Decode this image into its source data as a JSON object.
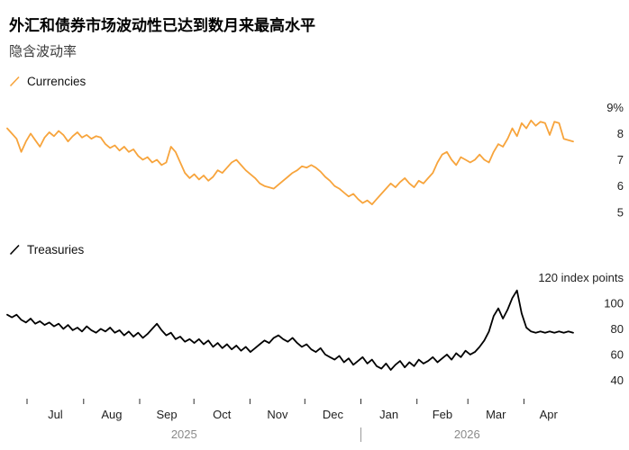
{
  "title": "外汇和债券市场波动性已达到数月来最高水平",
  "subtitle": "隐含波动率",
  "chart_data": {
    "panels": [
      {
        "type": "line",
        "name": "Currencies",
        "color": "#f7a43c",
        "unit": "%",
        "ylim": [
          4.65,
          9.25
        ],
        "yticks": [
          {
            "value": 5,
            "label": "5"
          },
          {
            "value": 6,
            "label": "6"
          },
          {
            "value": 7,
            "label": "7"
          },
          {
            "value": 8,
            "label": "8"
          },
          {
            "value": 9,
            "label": "9%"
          }
        ],
        "values": [
          8.2,
          8.0,
          7.8,
          7.3,
          7.7,
          8.0,
          7.75,
          7.5,
          7.85,
          8.05,
          7.9,
          8.1,
          7.95,
          7.7,
          7.9,
          8.05,
          7.85,
          7.95,
          7.8,
          7.9,
          7.85,
          7.6,
          7.45,
          7.55,
          7.35,
          7.5,
          7.3,
          7.4,
          7.15,
          7.0,
          7.1,
          6.9,
          7.0,
          6.8,
          6.9,
          7.5,
          7.3,
          6.9,
          6.5,
          6.3,
          6.45,
          6.25,
          6.4,
          6.2,
          6.35,
          6.6,
          6.5,
          6.7,
          6.9,
          7.0,
          6.8,
          6.6,
          6.45,
          6.3,
          6.1,
          6.0,
          5.95,
          5.9,
          6.05,
          6.2,
          6.35,
          6.5,
          6.6,
          6.75,
          6.7,
          6.8,
          6.7,
          6.55,
          6.35,
          6.2,
          6.0,
          5.9,
          5.75,
          5.6,
          5.7,
          5.5,
          5.35,
          5.45,
          5.3,
          5.5,
          5.7,
          5.9,
          6.1,
          5.95,
          6.15,
          6.3,
          6.1,
          5.95,
          6.2,
          6.1,
          6.3,
          6.5,
          6.9,
          7.2,
          7.3,
          7.0,
          6.8,
          7.1,
          7.0,
          6.9,
          7.0,
          7.2,
          7.0,
          6.9,
          7.3,
          7.6,
          7.5,
          7.8,
          8.2,
          7.9,
          8.4,
          8.2,
          8.5,
          8.3,
          8.45,
          8.4,
          7.95,
          8.45,
          8.4,
          7.8,
          7.75,
          7.7
        ]
      },
      {
        "type": "line",
        "name": "Treasuries",
        "color": "#000000",
        "unit": "index points",
        "ylim": [
          34,
          128
        ],
        "yticks": [
          {
            "value": 40,
            "label": "40"
          },
          {
            "value": 60,
            "label": "60"
          },
          {
            "value": 80,
            "label": "80"
          },
          {
            "value": 100,
            "label": "100"
          },
          {
            "value": 120,
            "label": "120 index points"
          }
        ],
        "values": [
          91,
          89,
          91,
          87,
          85,
          88,
          84,
          86,
          83,
          85,
          82,
          84,
          80,
          83,
          79,
          81,
          78,
          82,
          79,
          77,
          80,
          78,
          81,
          77,
          79,
          75,
          78,
          74,
          77,
          73,
          76,
          80,
          84,
          79,
          75,
          77,
          72,
          74,
          70,
          72,
          69,
          72,
          68,
          71,
          66,
          69,
          65,
          68,
          64,
          67,
          63,
          66,
          62,
          65,
          68,
          71,
          69,
          73,
          75,
          72,
          70,
          73,
          69,
          66,
          68,
          64,
          62,
          65,
          60,
          58,
          56,
          59,
          54,
          57,
          52,
          55,
          58,
          53,
          56,
          51,
          49,
          53,
          48,
          52,
          55,
          50,
          54,
          51,
          56,
          53,
          55,
          58,
          54,
          57,
          60,
          56,
          61,
          58,
          63,
          60,
          62,
          66,
          71,
          78,
          90,
          96,
          88,
          95,
          104,
          110,
          92,
          81,
          78,
          77,
          78,
          77,
          78,
          77,
          78,
          77,
          78,
          77
        ]
      }
    ],
    "x_axis": {
      "month_labels": [
        "Jul",
        "Aug",
        "Sep",
        "Oct",
        "Nov",
        "Dec",
        "Jan",
        "Feb",
        "Mar",
        "Apr"
      ],
      "boundaries": [
        0.035,
        0.135,
        0.234,
        0.33,
        0.429,
        0.526,
        0.625,
        0.724,
        0.814,
        0.913,
        1.0
      ],
      "years": [
        {
          "label": "2025",
          "start": 0.0,
          "end": 0.625
        },
        {
          "label": "2026",
          "start": 0.625,
          "end": 1.0
        }
      ],
      "year_divider": 0.625
    }
  }
}
